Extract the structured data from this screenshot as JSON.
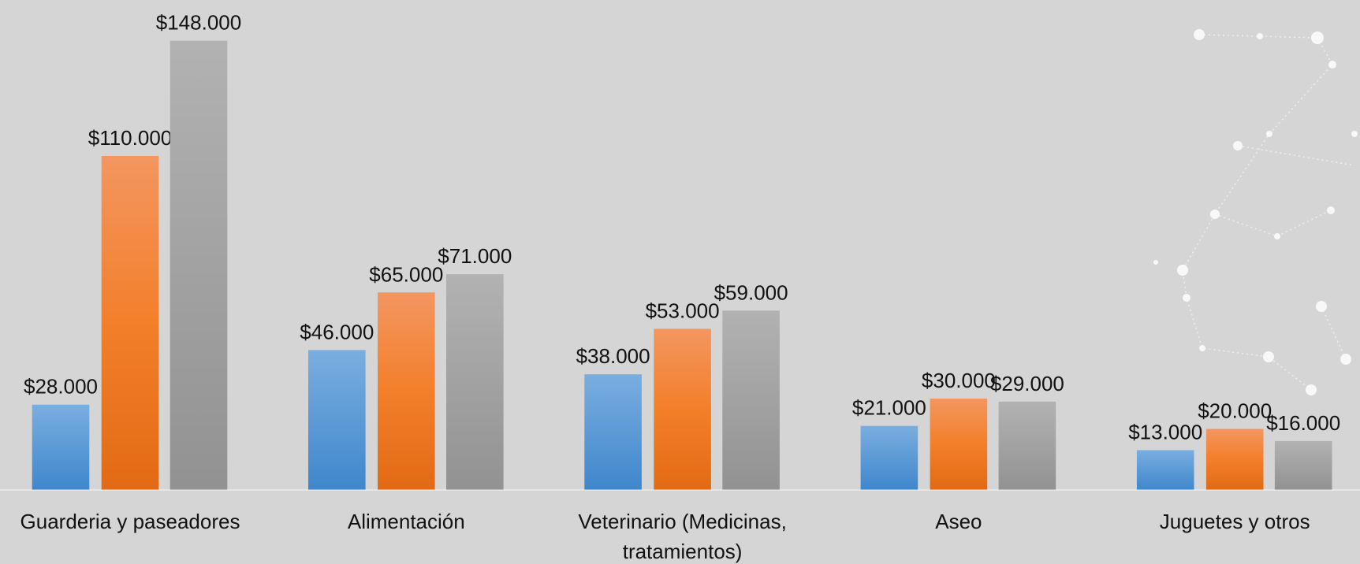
{
  "chart_data": {
    "type": "bar",
    "categories": [
      "Guarderia y paseadores",
      "Alimentación",
      "Veterinario (Medicinas, tratamientos)",
      "Aseo",
      "Juguetes y otros"
    ],
    "series": [
      {
        "color": "#5b9bd5",
        "values": [
          28000,
          46000,
          38000,
          21000,
          13000
        ],
        "value_labels": [
          "$28.000",
          "$46.000",
          "$38.000",
          "$21.000",
          "$13.000"
        ]
      },
      {
        "color": "#ed7d31",
        "values": [
          110000,
          65000,
          53000,
          30000,
          20000
        ],
        "value_labels": [
          "$110.000",
          "$65.000",
          "$53.000",
          "$30.000",
          "$20.000"
        ]
      },
      {
        "color": "#a5a5a5",
        "values": [
          148000,
          71000,
          59000,
          29000,
          16000
        ],
        "value_labels": [
          "$148.000",
          "$71.000",
          "$59.000",
          "$29.000",
          "$16.000"
        ]
      }
    ],
    "ylim": [
      0,
      160000
    ]
  }
}
